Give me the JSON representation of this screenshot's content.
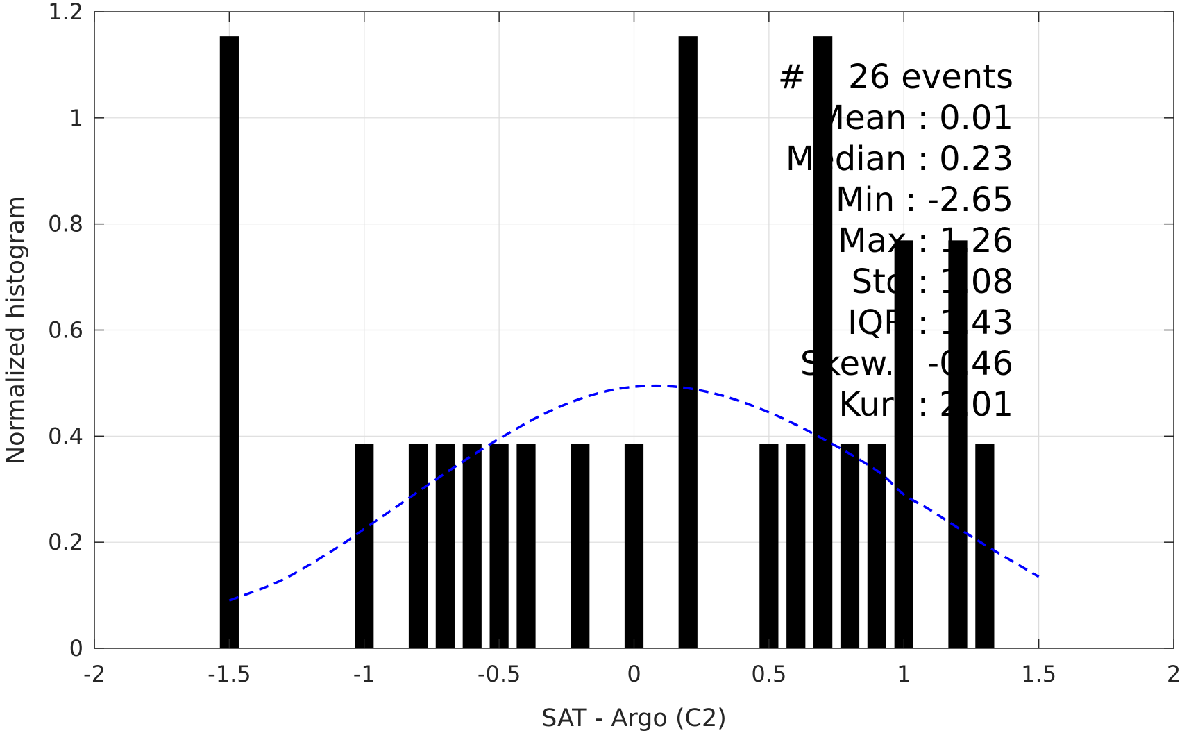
{
  "chart_data": {
    "type": "bar",
    "xlabel": "SAT - Argo (C2)",
    "ylabel": "Normalized histogram",
    "xlim": [
      -2,
      2
    ],
    "ylim": [
      0,
      1.2
    ],
    "grid": true,
    "xticks": [
      -2,
      -1.5,
      -1,
      -0.5,
      0,
      0.5,
      1,
      1.5,
      2
    ],
    "xtick_labels": [
      "-2",
      "-1.5",
      "-1",
      "-0.5",
      "0",
      "0.5",
      "1",
      "1.5",
      "2"
    ],
    "yticks": [
      0,
      0.2,
      0.4,
      0.6,
      0.8,
      1,
      1.2
    ],
    "ytick_labels": [
      "0",
      "0.2",
      "0.4",
      "0.6",
      "0.8",
      "1",
      "1.2"
    ],
    "bar_color": "#000000",
    "bar_width": 0.07,
    "bars": [
      {
        "x": -1.5,
        "value": 1.154
      },
      {
        "x": -1.0,
        "value": 0.385
      },
      {
        "x": -0.8,
        "value": 0.385
      },
      {
        "x": -0.7,
        "value": 0.385
      },
      {
        "x": -0.6,
        "value": 0.385
      },
      {
        "x": -0.5,
        "value": 0.385
      },
      {
        "x": -0.4,
        "value": 0.385
      },
      {
        "x": -0.2,
        "value": 0.385
      },
      {
        "x": 0.0,
        "value": 0.385
      },
      {
        "x": 0.2,
        "value": 1.154
      },
      {
        "x": 0.5,
        "value": 0.385
      },
      {
        "x": 0.6,
        "value": 0.385
      },
      {
        "x": 0.7,
        "value": 1.154
      },
      {
        "x": 0.8,
        "value": 0.385
      },
      {
        "x": 0.9,
        "value": 0.385
      },
      {
        "x": 1.0,
        "value": 0.769
      },
      {
        "x": 1.2,
        "value": 0.769
      },
      {
        "x": 1.3,
        "value": 0.385
      }
    ],
    "fit_curve": {
      "style": "dashed",
      "color": "#0000ff",
      "points": [
        [
          -1.5,
          0.09
        ],
        [
          -1.3,
          0.13
        ],
        [
          -1.1,
          0.19
        ],
        [
          -1.0,
          0.225
        ],
        [
          -0.9,
          0.26
        ],
        [
          -0.7,
          0.33
        ],
        [
          -0.5,
          0.395
        ],
        [
          -0.3,
          0.45
        ],
        [
          -0.1,
          0.485
        ],
        [
          0.1,
          0.495
        ],
        [
          0.3,
          0.48
        ],
        [
          0.5,
          0.445
        ],
        [
          0.7,
          0.395
        ],
        [
          0.9,
          0.335
        ],
        [
          1.0,
          0.29
        ],
        [
          1.1,
          0.26
        ],
        [
          1.3,
          0.195
        ],
        [
          1.5,
          0.135
        ]
      ]
    },
    "annotation": [
      "#    26 events",
      "Mean : 0.01",
      "Median : 0.23",
      "Min : -2.65",
      "Max : 1.26",
      "Std : 1.08",
      "IQR : 1.43",
      "Skew. : -0.46",
      "Kurt : 2.01"
    ]
  }
}
